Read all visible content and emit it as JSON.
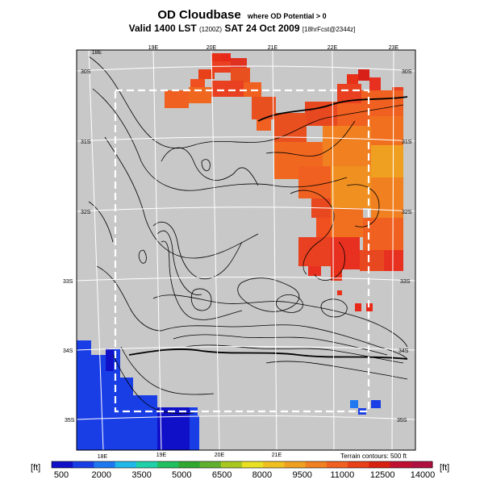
{
  "title": {
    "main": "OD Cloudbase",
    "condition": "where OD Potential > 0",
    "valid_text": "Valid 1400 LST",
    "valid_utc": "(1200Z)",
    "date_text": "SAT 24 Oct 2009",
    "forecast": "[18hrFcst@2344z]"
  },
  "map": {
    "lon_labels": [
      "18E",
      "19E",
      "20E",
      "21E",
      "22E",
      "23E"
    ],
    "lon_labels_bottom": [
      "18E",
      "19E",
      "20E",
      "21E"
    ],
    "lat_labels": [
      "30S",
      "31S",
      "32S",
      "33S",
      "34S",
      "35S"
    ],
    "land_color": "#c8c8c8",
    "ocean_color": "#c8c8c8"
  },
  "colorbar": {
    "unit_left": "[ft]",
    "unit_right": "[ft]",
    "tick_labels": [
      "500",
      "2000",
      "3500",
      "5000",
      "6500",
      "8000",
      "9500",
      "11000",
      "12500",
      "14000"
    ],
    "colors": [
      "#1010c8",
      "#1a3ee6",
      "#1f78f0",
      "#20b8e8",
      "#20d0a8",
      "#20c060",
      "#30a830",
      "#60b030",
      "#a8c820",
      "#e8e020",
      "#f0c020",
      "#f0a020",
      "#f08020",
      "#f06020",
      "#e84018",
      "#d82010",
      "#c01030",
      "#b01040"
    ],
    "terrain_note": "Terrain contours: 500 ft"
  }
}
